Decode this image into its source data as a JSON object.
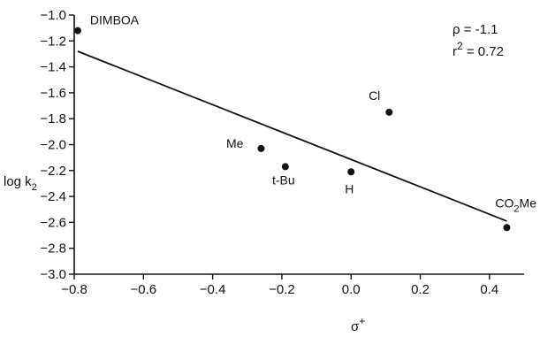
{
  "chart_data": {
    "type": "scatter",
    "title": "",
    "xlabel": "σ+",
    "ylabel": "log k2",
    "xlim": [
      -0.8,
      0.5
    ],
    "ylim": [
      -3.0,
      -1.0
    ],
    "x_ticks": [
      -0.8,
      -0.6,
      -0.4,
      -0.2,
      0.0,
      0.2,
      0.4
    ],
    "x_tick_labels": [
      "-0.8",
      "-0.6",
      "-0.4",
      "-0.2",
      "0.0",
      "0.2",
      "0.4"
    ],
    "y_ticks": [
      -1.0,
      -1.2,
      -1.4,
      -1.6,
      -1.8,
      -2.0,
      -2.2,
      -2.4,
      -2.6,
      -2.8,
      -3.0
    ],
    "y_tick_labels": [
      "-1.0",
      "-1.2",
      "-1.4",
      "-1.6",
      "-1.8",
      "-2.0",
      "-2.2",
      "-2.4",
      "-2.6",
      "-2.8",
      "-3.0"
    ],
    "grid": false,
    "points": [
      {
        "label": "DIMBOA",
        "x": -0.79,
        "y": -1.12
      },
      {
        "label": "Me",
        "x": -0.26,
        "y": -2.03
      },
      {
        "label": "t-Bu",
        "x": -0.19,
        "y": -2.17
      },
      {
        "label": "H",
        "x": 0.0,
        "y": -2.21
      },
      {
        "label": "Cl",
        "x": 0.11,
        "y": -1.75
      },
      {
        "label": "CO2Me",
        "x": 0.45,
        "y": -2.64
      }
    ],
    "fit_line": {
      "x1": -0.79,
      "y1": -1.28,
      "x2": 0.45,
      "y2": -2.59
    },
    "annotations": {
      "rho": "ρ = -1.1",
      "r2": "r2 = 0.72"
    }
  }
}
